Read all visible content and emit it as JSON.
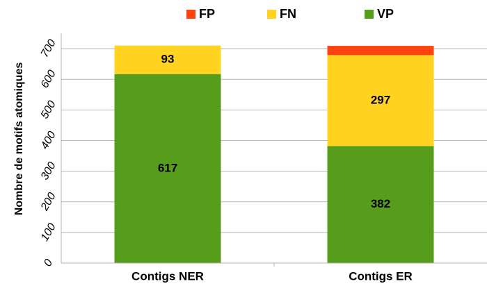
{
  "chart_data": {
    "type": "stacked_bar",
    "categories": [
      "Contigs NER",
      "Contigs ER"
    ],
    "series": [
      {
        "name": "VP",
        "color": "#579d1c",
        "values": [
          617,
          382
        ],
        "data_labels": true
      },
      {
        "name": "FN",
        "color": "#ffd320",
        "values": [
          93,
          297
        ],
        "data_labels": true
      },
      {
        "name": "FP",
        "color": "#ff420e",
        "values": [
          0,
          30
        ],
        "data_labels": false
      }
    ],
    "legend_order": [
      2,
      1,
      0
    ],
    "y_label": "Nombre de motifs atomiques",
    "ylim": [
      0,
      750
    ],
    "yticks": [
      0,
      100,
      200,
      300,
      400,
      500,
      600,
      700
    ],
    "grid": true
  }
}
